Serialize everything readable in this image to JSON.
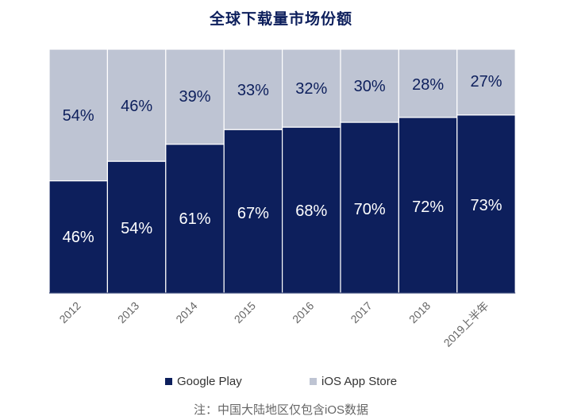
{
  "chart_data": {
    "type": "bar",
    "stacked": true,
    "title": "全球下载量市场份额",
    "categories": [
      "2012",
      "2013",
      "2014",
      "2015",
      "2016",
      "2017",
      "2018",
      "2019上半年"
    ],
    "series": [
      {
        "name": "Google Play",
        "color": "#0d1f5c",
        "values": [
          46,
          54,
          61,
          67,
          68,
          70,
          72,
          73
        ],
        "labels": [
          "46%",
          "54%",
          "61%",
          "67%",
          "68%",
          "70%",
          "72%",
          "73%"
        ]
      },
      {
        "name": "iOS App Store",
        "color": "#bec4d3",
        "values": [
          54,
          46,
          39,
          33,
          32,
          30,
          28,
          27
        ],
        "labels": [
          "54%",
          "46%",
          "39%",
          "33%",
          "32%",
          "30%",
          "28%",
          "27%"
        ]
      }
    ],
    "ylim": [
      0,
      100
    ],
    "xlabel": "",
    "ylabel": "",
    "legend_position": "bottom",
    "footnote": "注：中国大陆地区仅包含iOS数据"
  }
}
